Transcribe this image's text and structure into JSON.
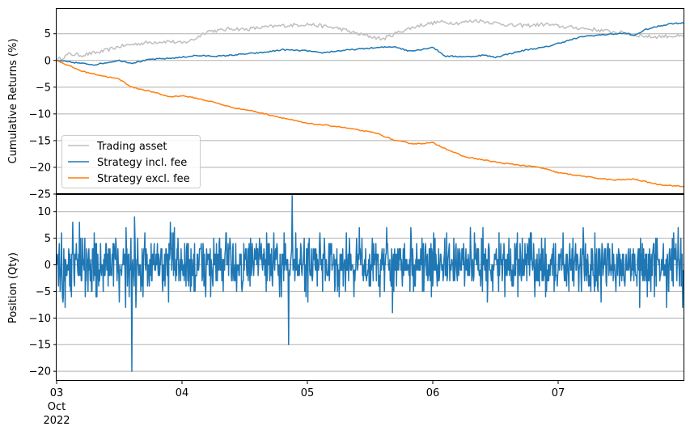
{
  "chart_data": [
    {
      "type": "line",
      "ylabel": "Cumulative Returns (%)",
      "ylim": [
        -25,
        9.8
      ],
      "yticks": [
        5,
        0,
        -5,
        -10,
        -15,
        -20,
        -25
      ],
      "ytick_labels": [
        "5",
        "0",
        "−5",
        "−10",
        "−15",
        "−20",
        "−25"
      ],
      "grid": "horizontal",
      "legend_position": "lower-left",
      "colors": {
        "Trading asset": "#bfbfbf",
        "Strategy incl. fee": "#1f77b4",
        "Strategy excl. fee": "#ff7f0e"
      },
      "series": [
        {
          "name": "Trading asset",
          "x": [
            0,
            0.1,
            0.2,
            0.35,
            0.5,
            0.6,
            0.75,
            0.9,
            1.0,
            1.1,
            1.2,
            1.3,
            1.4,
            1.5,
            1.65,
            1.8,
            2.0,
            2.1,
            2.25,
            2.4,
            2.6,
            2.75,
            2.9,
            3.05,
            3.2,
            3.35,
            3.5,
            3.65,
            3.8,
            3.9,
            4.0,
            4.2,
            4.35,
            4.5,
            4.6,
            4.75,
            4.9,
            5.0
          ],
          "y": [
            0,
            1.2,
            1.0,
            1.6,
            2.6,
            3.0,
            3.4,
            3.6,
            3.2,
            4.0,
            5.5,
            5.6,
            6.0,
            5.8,
            6.2,
            6.5,
            6.8,
            6.5,
            6.0,
            5.0,
            4.0,
            5.5,
            6.6,
            7.2,
            7.0,
            7.5,
            7.0,
            6.5,
            6.6,
            6.8,
            6.4,
            6.0,
            5.6,
            5.2,
            4.8,
            4.4,
            4.6,
            4.4
          ]
        },
        {
          "name": "Strategy incl. fee",
          "x": [
            0,
            0.1,
            0.3,
            0.5,
            0.6,
            0.75,
            0.9,
            1.0,
            1.1,
            1.3,
            1.5,
            1.65,
            1.8,
            2.0,
            2.1,
            2.25,
            2.5,
            2.7,
            2.8,
            2.9,
            3.0,
            3.1,
            3.3,
            3.4,
            3.5,
            3.6,
            3.75,
            3.9,
            4.0,
            4.2,
            4.4,
            4.55,
            4.6,
            4.7,
            4.8,
            4.9,
            5.0
          ],
          "y": [
            0,
            -0.3,
            -0.8,
            0.0,
            -0.5,
            0.2,
            0.4,
            0.6,
            0.9,
            0.8,
            1.2,
            1.5,
            2.0,
            1.8,
            1.4,
            1.8,
            2.3,
            2.6,
            1.8,
            2.0,
            2.5,
            0.8,
            0.7,
            1.0,
            0.6,
            1.2,
            2.0,
            2.5,
            3.2,
            4.5,
            4.9,
            5.1,
            4.6,
            5.8,
            6.4,
            6.9,
            7.0
          ]
        },
        {
          "name": "Strategy excl. fee",
          "x": [
            0,
            0.1,
            0.2,
            0.35,
            0.5,
            0.6,
            0.75,
            0.9,
            1.0,
            1.1,
            1.25,
            1.4,
            1.55,
            1.7,
            1.85,
            2.0,
            2.1,
            2.25,
            2.4,
            2.55,
            2.7,
            2.85,
            3.0,
            3.15,
            3.25,
            3.4,
            3.55,
            3.7,
            3.85,
            4.0,
            4.15,
            4.3,
            4.45,
            4.6,
            4.8,
            5.0
          ],
          "y": [
            0,
            -1.0,
            -2.0,
            -2.8,
            -3.5,
            -5.0,
            -5.8,
            -6.8,
            -6.6,
            -7.0,
            -7.8,
            -8.8,
            -9.4,
            -10.2,
            -11.0,
            -11.8,
            -12.0,
            -12.4,
            -13.0,
            -13.6,
            -15.0,
            -15.6,
            -15.4,
            -17.0,
            -18.0,
            -18.6,
            -19.2,
            -19.6,
            -20.0,
            -21.0,
            -21.5,
            -22.0,
            -22.4,
            -22.2,
            -23.2,
            -23.6
          ]
        }
      ]
    },
    {
      "type": "line",
      "ylabel": "Position (Qty)",
      "ylim": [
        -21.8,
        13.3
      ],
      "yticks": [
        10,
        5,
        0,
        -5,
        -10,
        -15,
        -20
      ],
      "ytick_labels": [
        "10",
        "5",
        "0",
        "−5",
        "−10",
        "−15",
        "−20"
      ],
      "grid": "horizontal",
      "xlim": [
        0,
        5
      ],
      "xticks": [
        0,
        1,
        2,
        3,
        4
      ],
      "xtick_labels": [
        "03",
        "04",
        "05",
        "06",
        "07"
      ],
      "xtick_sublabels": [
        "Oct",
        "2022"
      ],
      "oscillation_range": [
        -8,
        8
      ],
      "spikes": [
        {
          "x": 0.13,
          "y": 8
        },
        {
          "x": 0.3,
          "y": 6
        },
        {
          "x": 0.55,
          "y": -8
        },
        {
          "x": 0.6,
          "y": -20
        },
        {
          "x": 0.62,
          "y": 9
        },
        {
          "x": 1.35,
          "y": 6
        },
        {
          "x": 1.85,
          "y": -15
        },
        {
          "x": 1.88,
          "y": 13
        },
        {
          "x": 2.68,
          "y": -9
        },
        {
          "x": 3.4,
          "y": 7
        },
        {
          "x": 4.65,
          "y": -8
        }
      ]
    }
  ]
}
